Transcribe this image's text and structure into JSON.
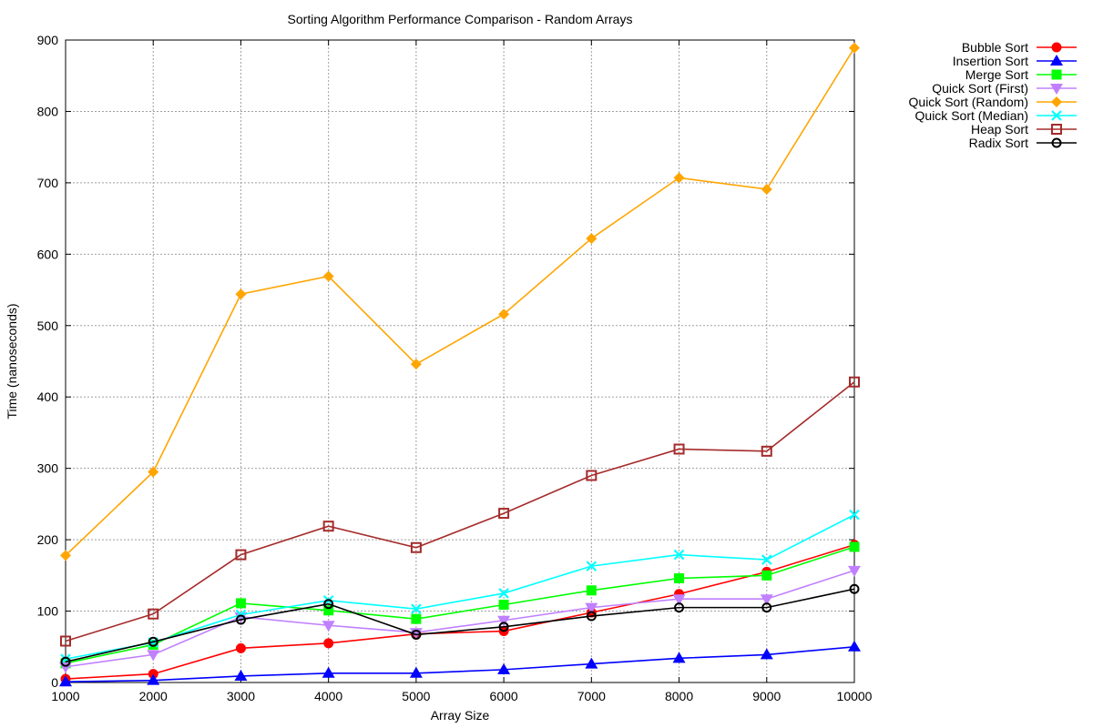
{
  "chart_data": {
    "type": "line",
    "title": "Sorting Algorithm Performance Comparison - Random Arrays",
    "xlabel": "Array Size",
    "ylabel": "Time (nanoseconds)",
    "x": [
      1000,
      2000,
      3000,
      4000,
      5000,
      6000,
      7000,
      8000,
      9000,
      10000
    ],
    "xlim": [
      1000,
      10000
    ],
    "ylim": [
      0,
      900
    ],
    "xticks": [
      1000,
      2000,
      3000,
      4000,
      5000,
      6000,
      7000,
      8000,
      9000,
      10000
    ],
    "yticks": [
      0,
      100,
      200,
      300,
      400,
      500,
      600,
      700,
      800,
      900
    ],
    "grid": true,
    "legend_position": "outside-top-right",
    "series": [
      {
        "name": "Bubble Sort",
        "color": "#ff0000",
        "marker": "circle",
        "values": [
          5,
          12,
          48,
          55,
          68,
          72,
          98,
          124,
          155,
          193
        ]
      },
      {
        "name": "Insertion Sort",
        "color": "#0000ff",
        "marker": "triangle",
        "values": [
          1,
          3,
          9,
          13,
          13,
          18,
          26,
          34,
          39,
          50
        ]
      },
      {
        "name": "Merge Sort",
        "color": "#00ff00",
        "marker": "square",
        "values": [
          27,
          53,
          111,
          101,
          89,
          109,
          129,
          146,
          150,
          190
        ]
      },
      {
        "name": "Quick Sort (First)",
        "color": "#c080ff",
        "marker": "triangle-down",
        "values": [
          22,
          39,
          92,
          80,
          70,
          87,
          105,
          117,
          117,
          157
        ]
      },
      {
        "name": "Quick Sort (Random)",
        "color": "#ffa500",
        "marker": "diamond",
        "values": [
          178,
          295,
          544,
          569,
          446,
          516,
          622,
          707,
          691,
          889
        ]
      },
      {
        "name": "Quick Sort (Median)",
        "color": "#00ffff",
        "marker": "x",
        "values": [
          33,
          56,
          95,
          115,
          103,
          125,
          163,
          179,
          172,
          235
        ]
      },
      {
        "name": "Heap Sort",
        "color": "#a52a2a",
        "marker": "square-open",
        "values": [
          58,
          96,
          179,
          219,
          189,
          237,
          290,
          327,
          324,
          421
        ]
      },
      {
        "name": "Radix Sort",
        "color": "#000000",
        "marker": "circle-open",
        "values": [
          29,
          57,
          88,
          110,
          67,
          78,
          93,
          105,
          105,
          131
        ]
      }
    ]
  }
}
